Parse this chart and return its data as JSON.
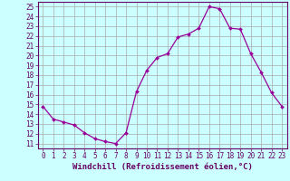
{
  "x": [
    0,
    1,
    2,
    3,
    4,
    5,
    6,
    7,
    8,
    9,
    10,
    11,
    12,
    13,
    14,
    15,
    16,
    17,
    18,
    19,
    20,
    21,
    22,
    23
  ],
  "y": [
    14.8,
    13.5,
    13.2,
    12.9,
    12.1,
    11.5,
    11.2,
    11.0,
    12.1,
    16.3,
    18.5,
    19.8,
    20.2,
    21.9,
    22.2,
    22.8,
    25.0,
    24.8,
    22.8,
    22.7,
    20.2,
    18.3,
    16.2,
    14.8
  ],
  "line_color": "#990099",
  "marker": "D",
  "marker_size": 2,
  "bg_color": "#ccffff",
  "grid_color": "#aaaaaa",
  "xlabel": "Windchill (Refroidissement éolien,°C)",
  "ylabel": "",
  "xlim": [
    -0.5,
    23.5
  ],
  "ylim": [
    10.5,
    25.5
  ],
  "yticks": [
    11,
    12,
    13,
    14,
    15,
    16,
    17,
    18,
    19,
    20,
    21,
    22,
    23,
    24,
    25
  ],
  "xticks": [
    0,
    1,
    2,
    3,
    4,
    5,
    6,
    7,
    8,
    9,
    10,
    11,
    12,
    13,
    14,
    15,
    16,
    17,
    18,
    19,
    20,
    21,
    22,
    23
  ],
  "label_color": "#660066",
  "tick_color": "#660066",
  "axis_color": "#660066",
  "xlabel_fontsize": 6.5,
  "tick_fontsize": 5.5,
  "linewidth": 0.9
}
